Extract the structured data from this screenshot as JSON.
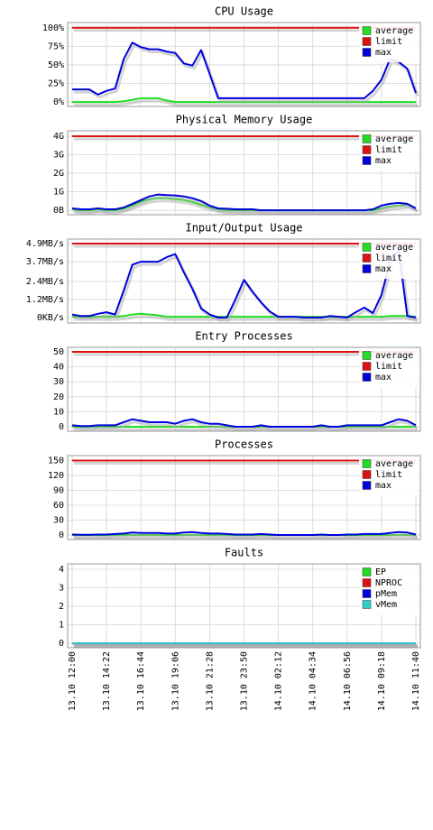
{
  "chart_data": [
    {
      "type": "line",
      "title": "CPU Usage",
      "ylim": [
        -6,
        107
      ],
      "yticks": [
        {
          "value": 0,
          "label": "0%"
        },
        {
          "value": 25,
          "label": "25%"
        },
        {
          "value": 50,
          "label": "50%"
        },
        {
          "value": 75,
          "label": "75%"
        },
        {
          "value": 100,
          "label": "100%"
        }
      ],
      "grid": true,
      "legend": "top-right",
      "series": [
        {
          "name": "average",
          "color": "#22dd22",
          "values": [
            0,
            0,
            0,
            0,
            0,
            0,
            1,
            3,
            5,
            5,
            5,
            2,
            0,
            0,
            0,
            0,
            0,
            0,
            0,
            0,
            0,
            0,
            0,
            0,
            0,
            0,
            0,
            0,
            0,
            0,
            0,
            0,
            0,
            0,
            0,
            0,
            0,
            0,
            0,
            0,
            0
          ]
        },
        {
          "name": "limit",
          "color": "#dd1111",
          "values": [
            100,
            100,
            100,
            100,
            100,
            100,
            100,
            100,
            100,
            100,
            100,
            100,
            100,
            100,
            100,
            100,
            100,
            100,
            100,
            100,
            100,
            100,
            100,
            100,
            100,
            100,
            100,
            100,
            100,
            100,
            100,
            100,
            100,
            100,
            100,
            100,
            100,
            100,
            100,
            100,
            100
          ]
        },
        {
          "name": "max",
          "color": "#0000dd",
          "values": [
            17,
            17,
            17,
            10,
            15,
            18,
            58,
            80,
            74,
            71,
            71,
            68,
            66,
            52,
            49,
            70,
            38,
            5,
            5,
            5,
            5,
            5,
            5,
            5,
            5,
            5,
            5,
            5,
            5,
            5,
            5,
            5,
            5,
            5,
            5,
            15,
            30,
            58,
            54,
            45,
            12
          ]
        }
      ]
    },
    {
      "type": "line",
      "title": "Physical Memory Usage",
      "ylim": [
        -0.24,
        4.29
      ],
      "yticks": [
        {
          "value": 0,
          "label": "0B"
        },
        {
          "value": 1,
          "label": "1G"
        },
        {
          "value": 2,
          "label": "2G"
        },
        {
          "value": 3,
          "label": "3G"
        },
        {
          "value": 4,
          "label": "4G"
        }
      ],
      "grid": true,
      "legend": "top-right",
      "series": [
        {
          "name": "average",
          "color": "#22dd22",
          "values": [
            0.05,
            0,
            0,
            0.05,
            0,
            0,
            0.1,
            0.25,
            0.45,
            0.6,
            0.65,
            0.65,
            0.6,
            0.55,
            0.45,
            0.3,
            0.15,
            0.05,
            0,
            0,
            0,
            0,
            0,
            0,
            0,
            0,
            0,
            0,
            0,
            0,
            0,
            0,
            0,
            0,
            0,
            0,
            0.1,
            0.2,
            0.25,
            0.3,
            0.1
          ]
        },
        {
          "name": "limit",
          "color": "#dd1111",
          "values": [
            4,
            4,
            4,
            4,
            4,
            4,
            4,
            4,
            4,
            4,
            4,
            4,
            4,
            4,
            4,
            4,
            4,
            4,
            4,
            4,
            4,
            4,
            4,
            4,
            4,
            4,
            4,
            4,
            4,
            4,
            4,
            4,
            4,
            4,
            4,
            4,
            4,
            4,
            4,
            4,
            4
          ]
        },
        {
          "name": "max",
          "color": "#0000dd",
          "values": [
            0.1,
            0.05,
            0.05,
            0.1,
            0.05,
            0.05,
            0.15,
            0.35,
            0.55,
            0.75,
            0.85,
            0.82,
            0.8,
            0.75,
            0.65,
            0.5,
            0.25,
            0.1,
            0.08,
            0.05,
            0.05,
            0.05,
            0,
            0,
            0,
            0,
            0,
            0,
            0,
            0,
            0,
            0,
            0,
            0,
            0,
            0.05,
            0.25,
            0.35,
            0.4,
            0.35,
            0.1
          ]
        }
      ]
    },
    {
      "type": "line",
      "title": "Input/Output Usage",
      "ylim": [
        -0.36,
        5.2
      ],
      "yticks": [
        {
          "value": 0,
          "label": "0KB/s"
        },
        {
          "value": 1.2,
          "label": "1.2MB/s"
        },
        {
          "value": 2.4,
          "label": "2.4MB/s"
        },
        {
          "value": 3.7,
          "label": "3.7MB/s"
        },
        {
          "value": 4.9,
          "label": "4.9MB/s"
        }
      ],
      "grid": true,
      "legend": "top-right",
      "series": [
        {
          "name": "average",
          "color": "#22dd22",
          "values": [
            0.05,
            0.05,
            0.05,
            0.05,
            0.05,
            0.05,
            0.1,
            0.2,
            0.25,
            0.2,
            0.15,
            0.05,
            0.05,
            0.05,
            0.05,
            0.05,
            0.05,
            0.05,
            0.05,
            0.05,
            0.05,
            0.05,
            0.05,
            0.05,
            0.05,
            0.05,
            0.05,
            0.05,
            0.05,
            0.05,
            0.05,
            0.05,
            0.05,
            0.05,
            0.05,
            0.05,
            0.05,
            0.1,
            0.1,
            0.1,
            0.05
          ]
        },
        {
          "name": "limit",
          "color": "#dd1111",
          "values": [
            4.9,
            4.9,
            4.9,
            4.9,
            4.9,
            4.9,
            4.9,
            4.9,
            4.9,
            4.9,
            4.9,
            4.9,
            4.9,
            4.9,
            4.9,
            4.9,
            4.9,
            4.9,
            4.9,
            4.9,
            4.9,
            4.9,
            4.9,
            4.9,
            4.9,
            4.9,
            4.9,
            4.9,
            4.9,
            4.9,
            4.9,
            4.9,
            4.9,
            4.9,
            4.9,
            4.9,
            4.9,
            4.9,
            4.9,
            4.9,
            4.9
          ]
        },
        {
          "name": "max",
          "color": "#0000dd",
          "values": [
            0.2,
            0.1,
            0.1,
            0.25,
            0.35,
            0.2,
            1.8,
            3.5,
            3.7,
            3.7,
            3.7,
            4.0,
            4.2,
            3.0,
            1.9,
            0.6,
            0.2,
            0,
            0,
            1.2,
            2.5,
            1.7,
            1.0,
            0.4,
            0.05,
            0.05,
            0.05,
            0,
            0,
            0,
            0.1,
            0.05,
            0,
            0.35,
            0.66,
            0.3,
            1.5,
            3.7,
            4.5,
            0.1,
            0
          ]
        }
      ]
    },
    {
      "type": "line",
      "title": "Entry Processes",
      "ylim": [
        -3,
        53
      ],
      "yticks": [
        0,
        10,
        20,
        30,
        40,
        50
      ],
      "grid": true,
      "legend": "top-right",
      "series": [
        {
          "name": "average",
          "color": "#22dd22",
          "values": [
            0,
            0,
            0,
            0,
            0,
            0,
            0,
            0,
            0,
            0,
            0,
            0,
            0,
            0,
            0,
            0,
            0,
            0,
            0,
            0,
            0,
            0,
            0,
            0,
            0,
            0,
            0,
            0,
            0,
            0,
            0,
            0,
            0,
            0,
            0,
            0,
            0,
            0,
            0,
            0,
            0
          ]
        },
        {
          "name": "limit",
          "color": "#dd1111",
          "values": [
            50,
            50,
            50,
            50,
            50,
            50,
            50,
            50,
            50,
            50,
            50,
            50,
            50,
            50,
            50,
            50,
            50,
            50,
            50,
            50,
            50,
            50,
            50,
            50,
            50,
            50,
            50,
            50,
            50,
            50,
            50,
            50,
            50,
            50,
            50,
            50,
            50,
            50,
            50,
            50,
            50
          ]
        },
        {
          "name": "max",
          "color": "#0000dd",
          "values": [
            1,
            0.5,
            0.5,
            1,
            1,
            1,
            3,
            5,
            4,
            3,
            3,
            3,
            2,
            4,
            5,
            3,
            2,
            2,
            1,
            0,
            0,
            0,
            1,
            0,
            0,
            0,
            0,
            0,
            0,
            1,
            0,
            0,
            1,
            1,
            1,
            1,
            1,
            3,
            5,
            4,
            1
          ]
        }
      ]
    },
    {
      "type": "line",
      "title": "Processes",
      "ylim": [
        -9,
        160
      ],
      "yticks": [
        0,
        30,
        60,
        90,
        120,
        150
      ],
      "grid": true,
      "legend": "top-right",
      "series": [
        {
          "name": "average",
          "color": "#22dd22",
          "values": [
            0,
            0,
            0,
            0,
            0,
            0,
            0,
            0,
            0,
            0,
            0,
            0,
            0,
            0,
            0,
            0,
            0,
            0,
            0,
            0,
            0,
            0,
            0,
            0,
            0,
            0,
            0,
            0,
            0,
            0,
            0,
            0,
            0,
            0,
            0,
            0,
            0,
            0,
            0,
            0,
            0
          ]
        },
        {
          "name": "limit",
          "color": "#dd1111",
          "values": [
            150,
            150,
            150,
            150,
            150,
            150,
            150,
            150,
            150,
            150,
            150,
            150,
            150,
            150,
            150,
            150,
            150,
            150,
            150,
            150,
            150,
            150,
            150,
            150,
            150,
            150,
            150,
            150,
            150,
            150,
            150,
            150,
            150,
            150,
            150,
            150,
            150,
            150,
            150,
            150,
            150
          ]
        },
        {
          "name": "max",
          "color": "#0000dd",
          "values": [
            1,
            0.5,
            0.5,
            1,
            1,
            2,
            3,
            5,
            4,
            4,
            4,
            3,
            3,
            5,
            6,
            4,
            3,
            3,
            2,
            1,
            1,
            1,
            2,
            1,
            0,
            0,
            0,
            0,
            0,
            1,
            0,
            0,
            1,
            1,
            2,
            2,
            2,
            4,
            6,
            5,
            1
          ]
        }
      ]
    },
    {
      "type": "line",
      "title": "Faults",
      "ylim": [
        -0.24,
        4.29
      ],
      "yticks": [
        0,
        1,
        2,
        3,
        4
      ],
      "grid": true,
      "legend": "top-right",
      "categories": [
        "13.10 12:00",
        null,
        null,
        null,
        "13.10 14:22",
        null,
        null,
        null,
        "13.10 16:44",
        null,
        null,
        null,
        "13.10 19:06",
        null,
        null,
        null,
        "13.10 21:28",
        null,
        null,
        null,
        "13.10 23:50",
        null,
        null,
        null,
        "14.10 02:12",
        null,
        null,
        null,
        "14.10 04:34",
        null,
        null,
        null,
        "14.10 06:56",
        null,
        null,
        null,
        "14.10 09:18",
        null,
        null,
        null,
        "14.10 11:40"
      ],
      "series": [
        {
          "name": "EP",
          "color": "#22dd22",
          "values": [
            0,
            0,
            0,
            0,
            0,
            0,
            0,
            0,
            0,
            0,
            0,
            0,
            0,
            0,
            0,
            0,
            0,
            0,
            0,
            0,
            0,
            0,
            0,
            0,
            0,
            0,
            0,
            0,
            0,
            0,
            0,
            0,
            0,
            0,
            0,
            0,
            0,
            0,
            0,
            0,
            0
          ]
        },
        {
          "name": "NPROC",
          "color": "#dd1111",
          "values": [
            0,
            0,
            0,
            0,
            0,
            0,
            0,
            0,
            0,
            0,
            0,
            0,
            0,
            0,
            0,
            0,
            0,
            0,
            0,
            0,
            0,
            0,
            0,
            0,
            0,
            0,
            0,
            0,
            0,
            0,
            0,
            0,
            0,
            0,
            0,
            0,
            0,
            0,
            0,
            0,
            0
          ]
        },
        {
          "name": "pMem",
          "color": "#0000dd",
          "values": [
            0,
            0,
            0,
            0,
            0,
            0,
            0,
            0,
            0,
            0,
            0,
            0,
            0,
            0,
            0,
            0,
            0,
            0,
            0,
            0,
            0,
            0,
            0,
            0,
            0,
            0,
            0,
            0,
            0,
            0,
            0,
            0,
            0,
            0,
            0,
            0,
            0,
            0,
            0,
            0,
            0
          ]
        },
        {
          "name": "vMem",
          "color": "#33cccc",
          "values": [
            0,
            0,
            0,
            0,
            0,
            0,
            0,
            0,
            0,
            0,
            0,
            0,
            0,
            0,
            0,
            0,
            0,
            0,
            0,
            0,
            0,
            0,
            0,
            0,
            0,
            0,
            0,
            0,
            0,
            0,
            0,
            0,
            0,
            0,
            0,
            0,
            0,
            0,
            0,
            0,
            0
          ]
        }
      ]
    }
  ]
}
